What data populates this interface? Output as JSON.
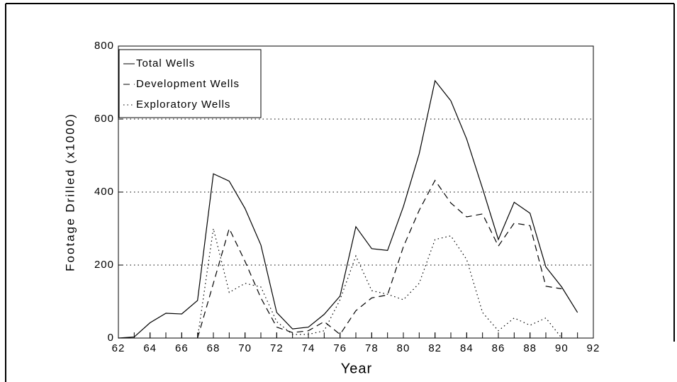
{
  "chart_data": {
    "type": "line",
    "xlabel": "Year",
    "ylabel": "Footage Drilled (x1000)",
    "x": [
      62,
      63,
      64,
      65,
      66,
      67,
      68,
      69,
      70,
      71,
      72,
      73,
      74,
      75,
      76,
      77,
      78,
      79,
      80,
      81,
      82,
      83,
      84,
      85,
      86,
      87,
      88,
      89,
      90,
      91
    ],
    "series": [
      {
        "name": "Total Wells",
        "color": "#000000",
        "style": "solid",
        "values": [
          0,
          3,
          42,
          68,
          66,
          103,
          450,
          430,
          355,
          255,
          70,
          25,
          30,
          65,
          115,
          305,
          245,
          240,
          360,
          505,
          705,
          650,
          545,
          410,
          270,
          372,
          342,
          195,
          140,
          70
        ]
      },
      {
        "name": "Development Wells",
        "color": "#000000",
        "style": "dashed",
        "values": [
          null,
          null,
          null,
          null,
          null,
          0,
          150,
          300,
          210,
          110,
          30,
          15,
          20,
          45,
          10,
          75,
          110,
          118,
          250,
          350,
          432,
          370,
          332,
          340,
          252,
          315,
          308,
          142,
          135,
          null
        ]
      },
      {
        "name": "Exploratory Wells",
        "color": "#000000",
        "style": "dotted",
        "values": [
          null,
          null,
          null,
          null,
          null,
          0,
          300,
          125,
          150,
          140,
          45,
          10,
          10,
          20,
          105,
          225,
          130,
          120,
          105,
          150,
          270,
          280,
          215,
          70,
          20,
          55,
          35,
          55,
          0,
          null
        ]
      }
    ],
    "xlim": [
      62,
      92
    ],
    "xticks": [
      62,
      64,
      66,
      68,
      70,
      72,
      74,
      76,
      78,
      80,
      82,
      84,
      86,
      88,
      90,
      92
    ],
    "ylim": [
      0,
      800
    ],
    "yticks": [
      0,
      200,
      400,
      600,
      800
    ],
    "grid": true,
    "legend": "upper left"
  }
}
